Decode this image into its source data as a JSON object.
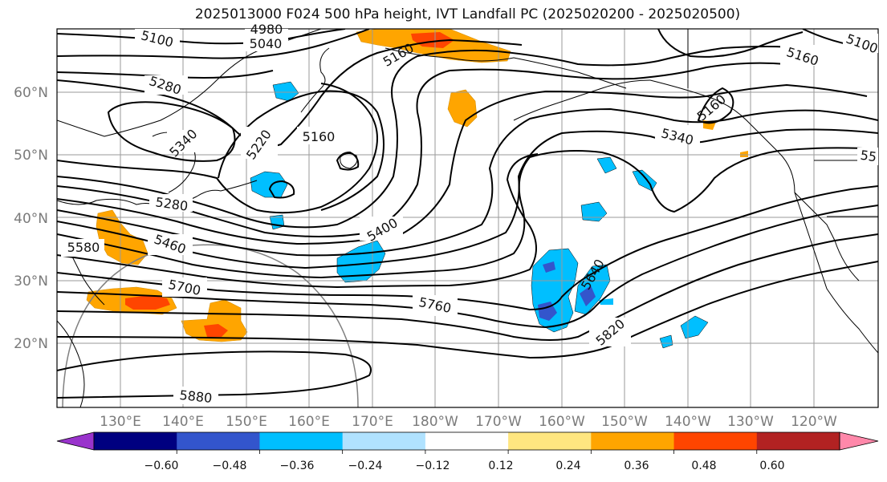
{
  "title": "2025013000 F024 500 hPa height, IVT Landfall PC (2025020200 - 2025020500)",
  "map": {
    "lat_labels": [
      "60°N",
      "50°N",
      "40°N",
      "30°N",
      "20°N"
    ],
    "lon_labels": [
      "130°E",
      "140°E",
      "150°E",
      "160°E",
      "170°E",
      "180°W",
      "170°W",
      "160°W",
      "150°W",
      "140°W",
      "130°W",
      "120°W"
    ],
    "contour_labels": [
      "5100",
      "4980",
      "5040",
      "5160",
      "5160",
      "5280",
      "5340",
      "5220",
      "5160",
      "5340",
      "5280",
      "5460",
      "5580",
      "5700",
      "5400",
      "5760",
      "5640",
      "5820",
      "5880",
      "5160",
      "5100",
      "55"
    ]
  },
  "colorbar": {
    "colors": [
      "#9933cc",
      "#000080",
      "#3355cc",
      "#00bfff",
      "#b0e2ff",
      "#ffffff",
      "#ffe680",
      "#ffa500",
      "#ff4500",
      "#b22222",
      "#ff88aa"
    ],
    "tick_labels": [
      "−0.60",
      "−0.48",
      "−0.36",
      "−0.24",
      "−0.12",
      "0.12",
      "0.24",
      "0.36",
      "0.48",
      "0.60"
    ]
  },
  "colors": {
    "contour": "#000000",
    "grid": "#9a9a9a",
    "coast": "#000000",
    "pos_light": "#ffe680",
    "pos_mid": "#ffa500",
    "pos_strong": "#ff4500",
    "neg_light": "#b0e2ff",
    "neg_mid": "#00bfff",
    "neg_strong": "#3355cc"
  }
}
